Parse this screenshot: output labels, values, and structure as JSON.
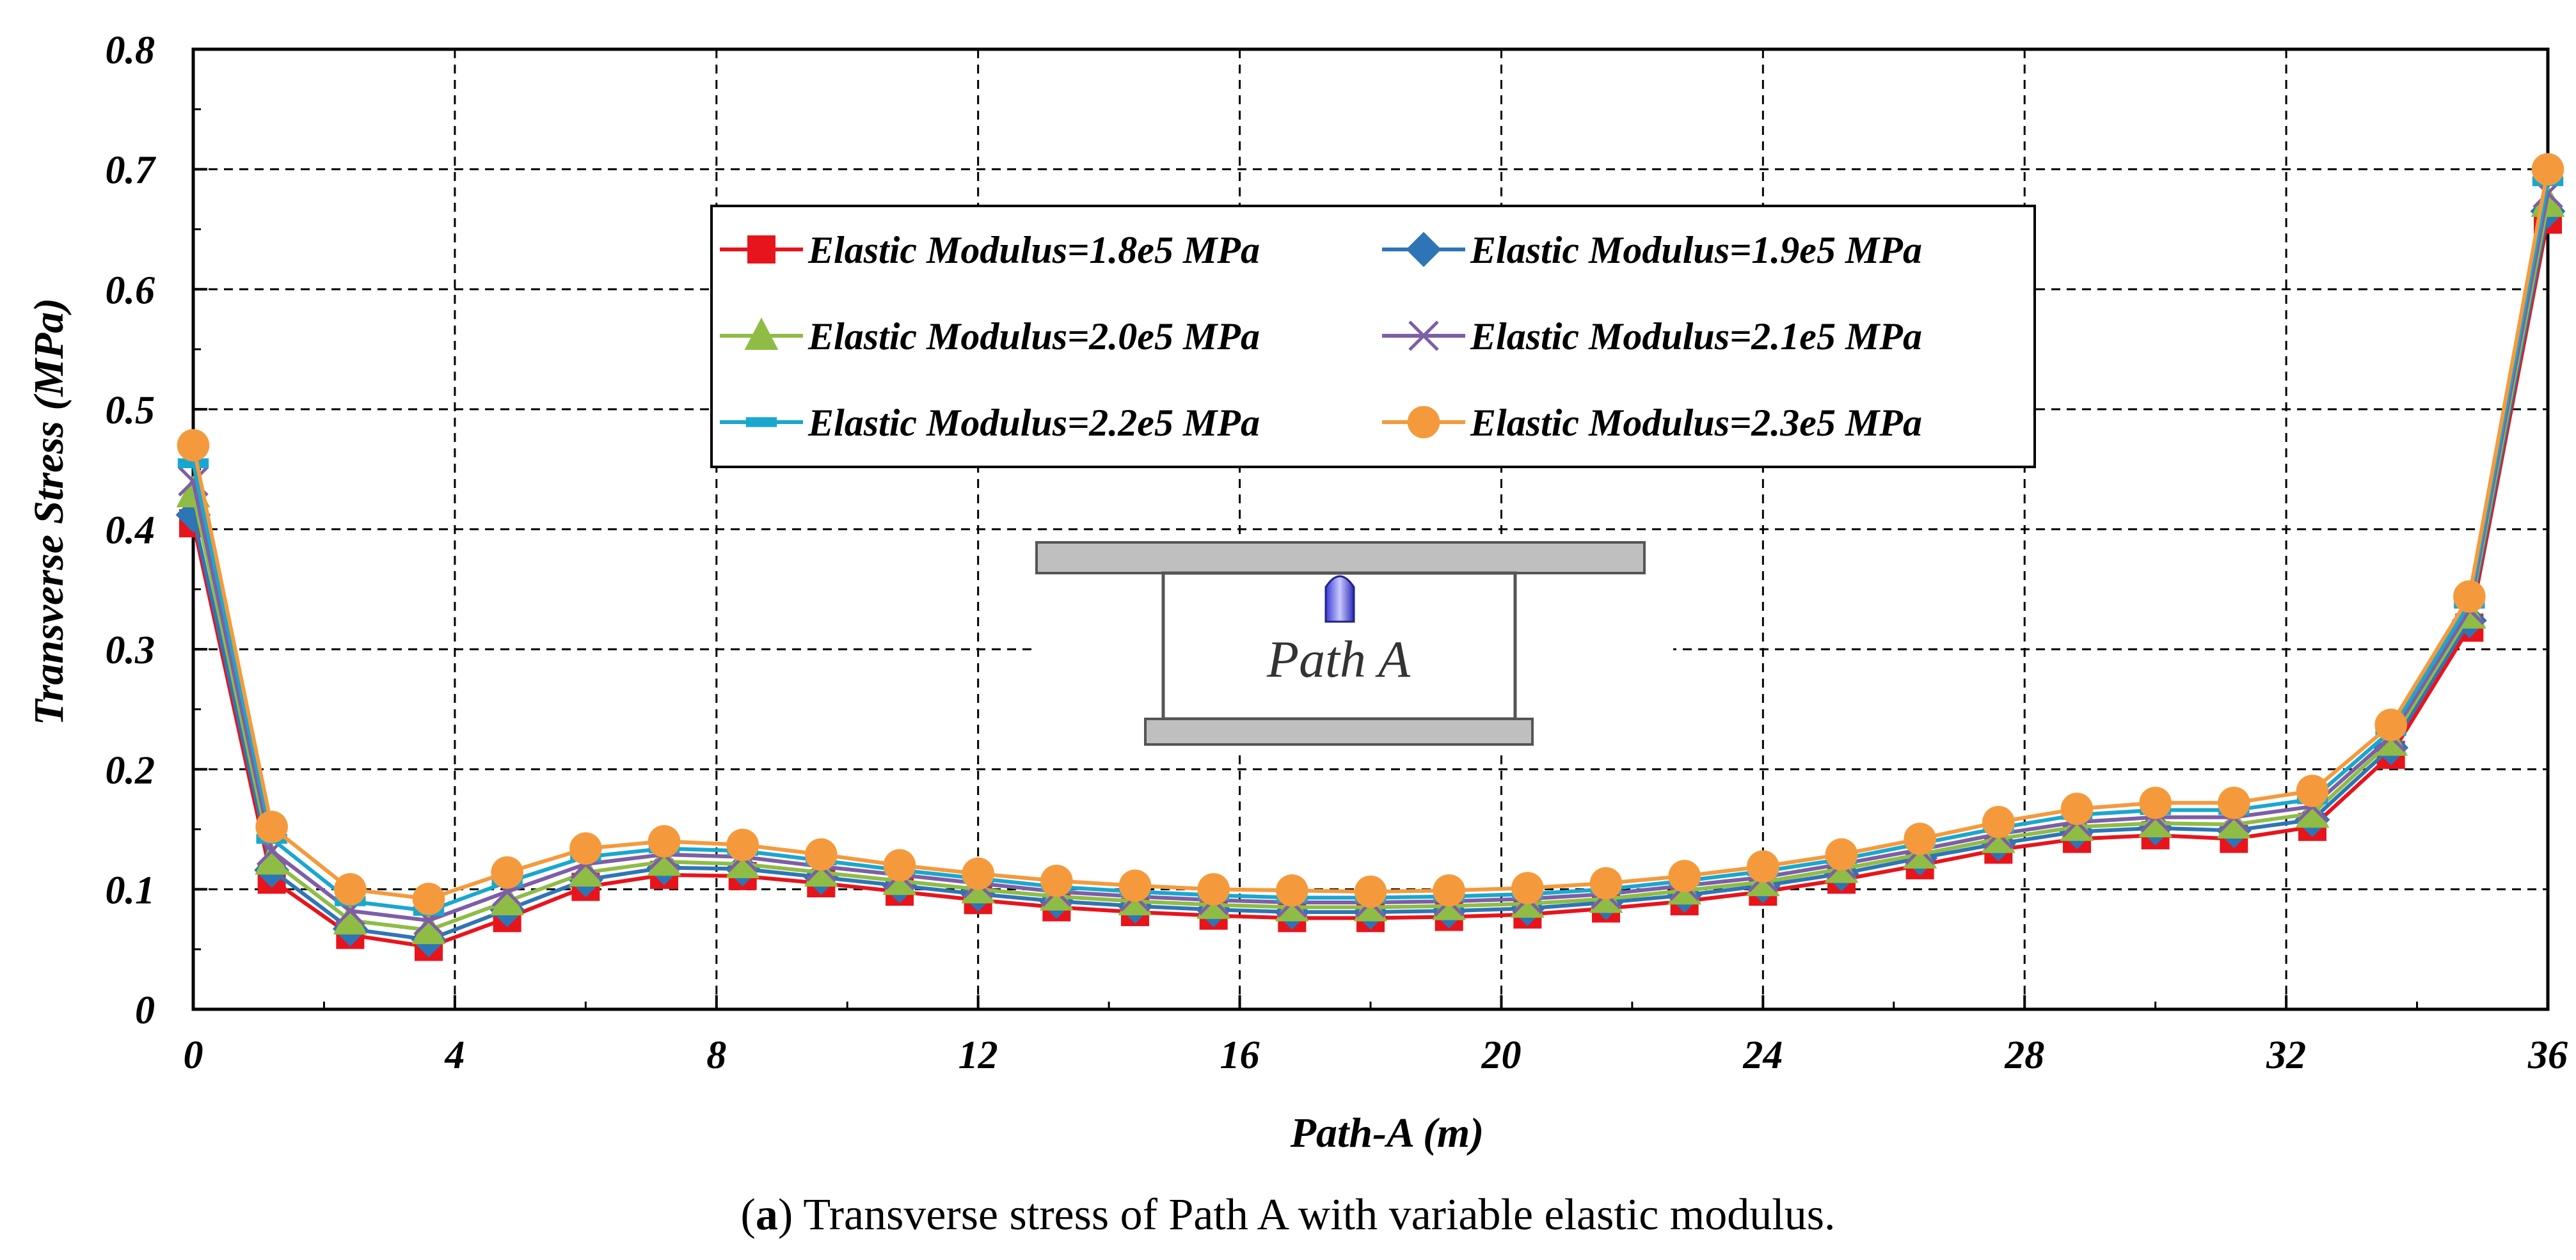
{
  "chart_data": {
    "type": "line",
    "title": "",
    "xlabel": "Path-A (m)",
    "ylabel": "Transverse Stress (MPa)",
    "xlim": [
      0,
      36
    ],
    "ylim": [
      0,
      0.8
    ],
    "xticks": [
      0,
      4,
      8,
      12,
      16,
      20,
      24,
      28,
      32,
      36
    ],
    "xtick_labels": [
      "0",
      "4",
      "8",
      "12",
      "16",
      "20",
      "24",
      "28",
      "32",
      "36"
    ],
    "yticks": [
      0,
      0.1,
      0.2,
      0.3,
      0.4,
      0.5,
      0.6,
      0.7,
      0.8
    ],
    "ytick_labels": [
      "0",
      "0.1",
      "0.2",
      "0.3",
      "0.4",
      "0.5",
      "0.6",
      "0.7",
      "0.8"
    ],
    "grid": true,
    "legend_position": "upper-center",
    "x": [
      0,
      1.2,
      2.4,
      3.6,
      4.8,
      6,
      7.2,
      8.4,
      9.6,
      10.8,
      12,
      13.2,
      14.4,
      15.6,
      16.8,
      18,
      19.2,
      20.4,
      21.6,
      22.8,
      24,
      25.2,
      26.4,
      27.6,
      28.8,
      30,
      31.2,
      32.4,
      33.6,
      34.8,
      36
    ],
    "series": [
      {
        "name": "Elastic Modulus=1.8e5 MPa",
        "color": "#e8141c",
        "marker": "square",
        "values": [
          0.405,
          0.108,
          0.062,
          0.052,
          0.076,
          0.102,
          0.112,
          0.111,
          0.105,
          0.098,
          0.091,
          0.085,
          0.081,
          0.078,
          0.076,
          0.076,
          0.077,
          0.079,
          0.084,
          0.09,
          0.098,
          0.108,
          0.12,
          0.133,
          0.142,
          0.145,
          0.142,
          0.152,
          0.212,
          0.318,
          0.658
        ]
      },
      {
        "name": "Elastic Modulus=1.9e5 MPa",
        "color": "#2e75b6",
        "marker": "diamond",
        "values": [
          0.412,
          0.116,
          0.067,
          0.058,
          0.083,
          0.108,
          0.118,
          0.117,
          0.11,
          0.103,
          0.096,
          0.09,
          0.086,
          0.083,
          0.081,
          0.081,
          0.082,
          0.084,
          0.089,
          0.095,
          0.103,
          0.113,
          0.126,
          0.138,
          0.148,
          0.151,
          0.149,
          0.158,
          0.218,
          0.324,
          0.665
        ]
      },
      {
        "name": "Elastic Modulus=2.0e5 MPa",
        "color": "#8fbc45",
        "marker": "triangle",
        "values": [
          0.43,
          0.124,
          0.074,
          0.066,
          0.09,
          0.114,
          0.123,
          0.121,
          0.114,
          0.107,
          0.1,
          0.094,
          0.09,
          0.087,
          0.085,
          0.085,
          0.086,
          0.088,
          0.092,
          0.099,
          0.106,
          0.117,
          0.129,
          0.142,
          0.152,
          0.155,
          0.154,
          0.163,
          0.223,
          0.329,
          0.672
        ]
      },
      {
        "name": "Elastic Modulus=2.1e5 MPa",
        "color": "#7e5ea6",
        "marker": "cross",
        "values": [
          0.44,
          0.132,
          0.082,
          0.074,
          0.098,
          0.121,
          0.129,
          0.127,
          0.119,
          0.112,
          0.105,
          0.098,
          0.094,
          0.091,
          0.089,
          0.089,
          0.09,
          0.092,
          0.096,
          0.103,
          0.11,
          0.121,
          0.133,
          0.146,
          0.156,
          0.16,
          0.16,
          0.169,
          0.227,
          0.333,
          0.68
        ]
      },
      {
        "name": "Elastic Modulus=2.2e5 MPa",
        "color": "#1aa7cf",
        "marker": "dash",
        "values": [
          0.455,
          0.142,
          0.09,
          0.082,
          0.106,
          0.127,
          0.134,
          0.132,
          0.124,
          0.116,
          0.109,
          0.102,
          0.098,
          0.095,
          0.093,
          0.093,
          0.094,
          0.096,
          0.1,
          0.107,
          0.115,
          0.125,
          0.138,
          0.151,
          0.162,
          0.166,
          0.166,
          0.175,
          0.232,
          0.338,
          0.69
        ]
      },
      {
        "name": "Elastic Modulus=2.3e5 MPa",
        "color": "#f59a3c",
        "marker": "circle",
        "values": [
          0.47,
          0.152,
          0.1,
          0.092,
          0.114,
          0.134,
          0.14,
          0.137,
          0.129,
          0.12,
          0.113,
          0.107,
          0.103,
          0.1,
          0.099,
          0.098,
          0.099,
          0.101,
          0.105,
          0.111,
          0.119,
          0.129,
          0.142,
          0.156,
          0.167,
          0.172,
          0.172,
          0.182,
          0.237,
          0.344,
          0.7
        ]
      }
    ],
    "inset_label": "Path A",
    "caption_prefix": "a",
    "caption_text": ") Transverse stress of Path A with variable elastic modulus."
  }
}
